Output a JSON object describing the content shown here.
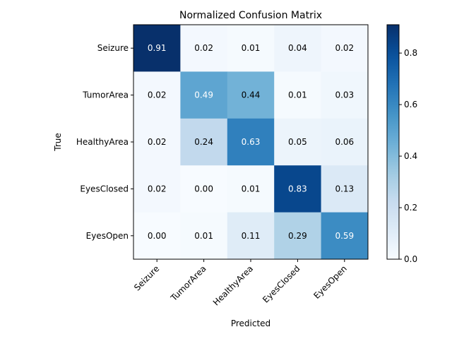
{
  "chart_data": {
    "type": "heatmap",
    "title": "Normalized Confusion Matrix",
    "xlabel": "Predicted",
    "ylabel": "True",
    "x_categories": [
      "Seizure",
      "TumorArea",
      "HealthyArea",
      "EyesClosed",
      "EyesOpen"
    ],
    "y_categories": [
      "Seizure",
      "TumorArea",
      "HealthyArea",
      "EyesClosed",
      "EyesOpen"
    ],
    "values": [
      [
        0.91,
        0.02,
        0.01,
        0.04,
        0.02
      ],
      [
        0.02,
        0.49,
        0.44,
        0.01,
        0.03
      ],
      [
        0.02,
        0.24,
        0.63,
        0.05,
        0.06
      ],
      [
        0.02,
        0.0,
        0.01,
        0.83,
        0.13
      ],
      [
        0.0,
        0.01,
        0.11,
        0.29,
        0.59
      ]
    ],
    "value_labels": [
      [
        "0.91",
        "0.02",
        "0.01",
        "0.04",
        "0.02"
      ],
      [
        "0.02",
        "0.49",
        "0.44",
        "0.01",
        "0.03"
      ],
      [
        "0.02",
        "0.24",
        "0.63",
        "0.05",
        "0.06"
      ],
      [
        "0.02",
        "0.00",
        "0.01",
        "0.83",
        "0.13"
      ],
      [
        "0.00",
        "0.01",
        "0.11",
        "0.29",
        "0.59"
      ]
    ],
    "colormap": "Blues",
    "vmin": 0.0,
    "vmax": 0.91,
    "colorbar": {
      "ticks": [
        0.0,
        0.2,
        0.4,
        0.6,
        0.8
      ],
      "tick_labels": [
        "0.0",
        "0.2",
        "0.4",
        "0.6",
        "0.8"
      ]
    },
    "grid": false,
    "legend": "colorbar-right"
  }
}
